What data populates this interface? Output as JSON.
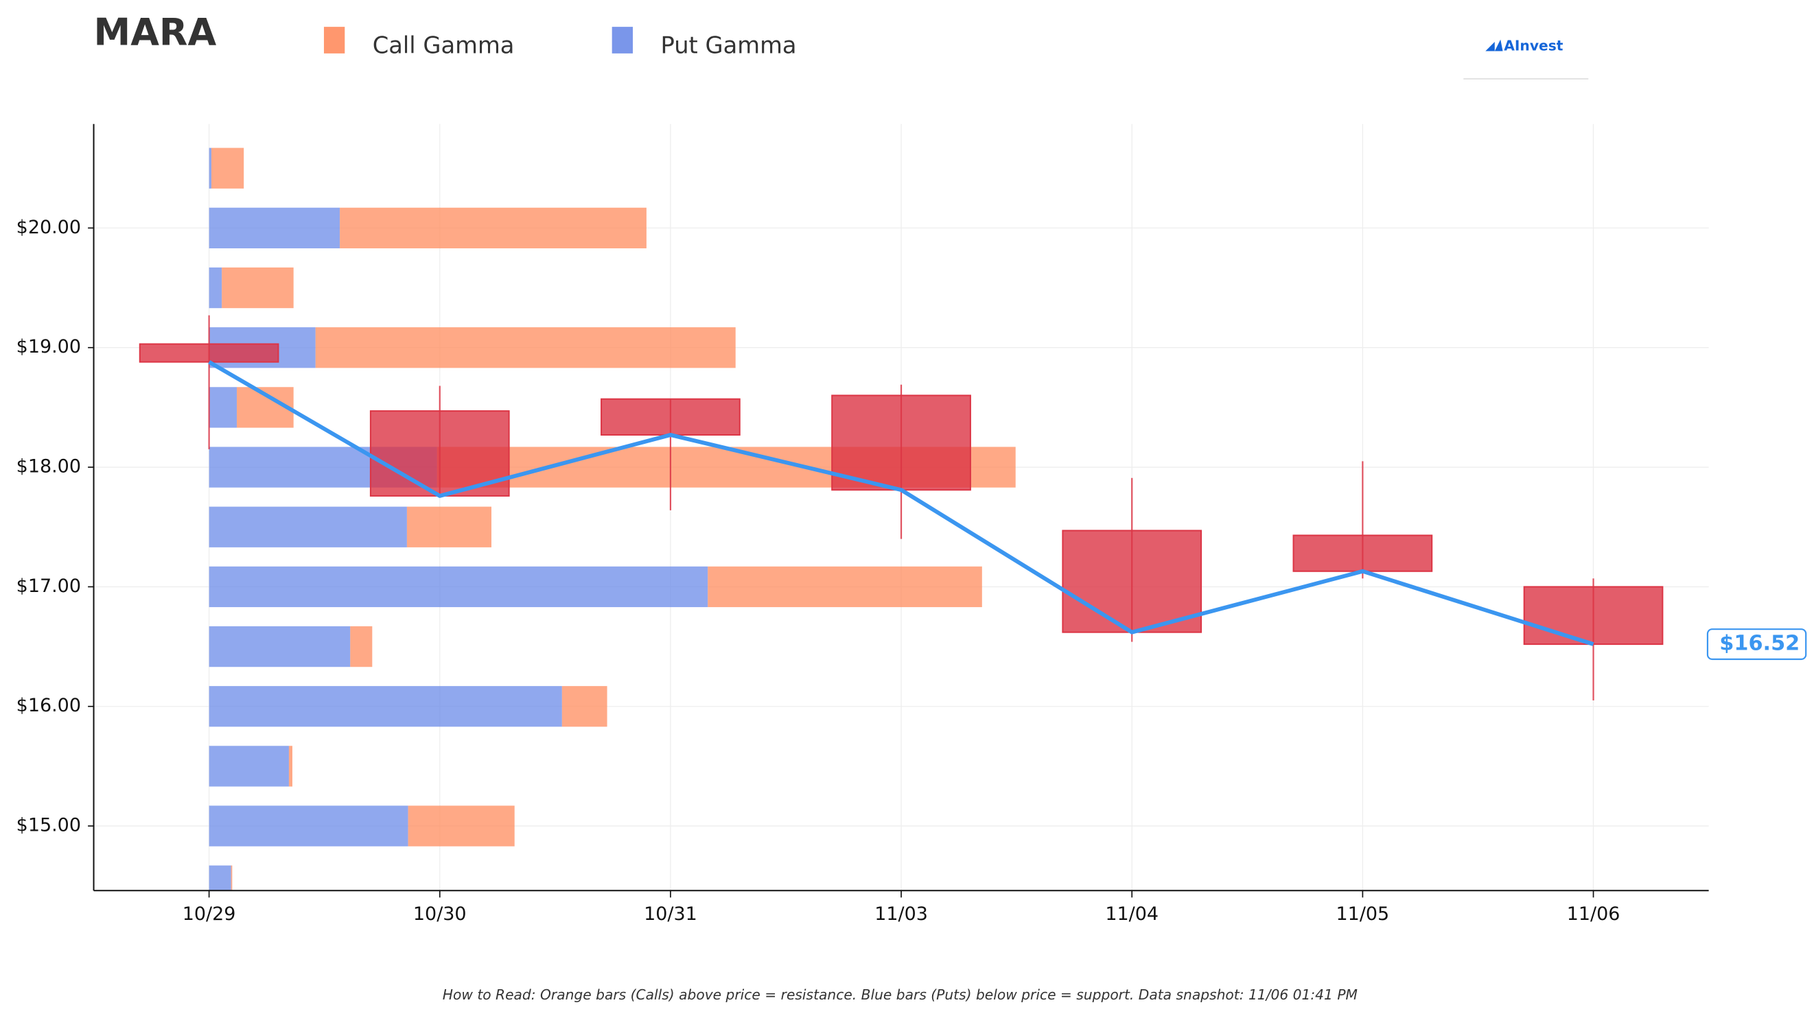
{
  "chart_data": {
    "type": "candlestick",
    "title": "MARA",
    "logo": "AInvest",
    "footnote": "How to Read: Orange bars (Calls) above price = resistance. Blue bars (Puts) below price = support. Data snapshot: 11/06 01:41 PM",
    "categories": [
      "10/29",
      "10/30",
      "10/31",
      "11/03",
      "11/04",
      "11/05",
      "11/06"
    ],
    "open": [
      19.03,
      18.47,
      18.57,
      18.6,
      17.47,
      17.43,
      17.0
    ],
    "high": [
      19.27,
      18.68,
      18.57,
      18.69,
      17.91,
      18.05,
      17.07
    ],
    "low": [
      18.15,
      17.76,
      17.64,
      17.4,
      16.54,
      17.07,
      16.05
    ],
    "close": [
      18.88,
      17.76,
      18.27,
      17.81,
      16.62,
      17.13,
      16.52
    ],
    "candle_color": "#dc3545",
    "line_color": "#3b96f0",
    "last_price": 16.52,
    "last_price_label": "$16.52",
    "xlim": [
      -0.5,
      6.5
    ],
    "ylim": [
      14.46,
      20.87
    ],
    "yticks": [
      {
        "value": 15,
        "label": "$15.00"
      },
      {
        "value": 16,
        "label": "$16.00"
      },
      {
        "value": 17,
        "label": "$17.00"
      },
      {
        "value": 18,
        "label": "$18.00"
      },
      {
        "value": 19,
        "label": "$19.00"
      },
      {
        "value": 20,
        "label": "$20.00"
      }
    ],
    "grid": true,
    "gamma": {
      "levels": [
        20.5,
        20,
        19.5,
        19,
        18.5,
        18,
        17.5,
        17,
        16.5,
        16,
        15.5,
        15,
        14.5
      ],
      "xlim": [
        0,
        1296
      ],
      "series": [
        {
          "name": "Put Gamma",
          "color": "#6b8be8",
          "values": [
            2,
            113,
            11,
            92,
            24,
            197,
            171,
            431,
            122,
            305,
            69,
            172,
            19
          ]
        },
        {
          "name": "Call Gamma",
          "color": "#ff8c5e",
          "values": [
            28,
            265,
            62,
            363,
            49,
            500,
            73,
            237,
            19,
            39,
            3,
            92,
            1
          ]
        }
      ]
    }
  }
}
